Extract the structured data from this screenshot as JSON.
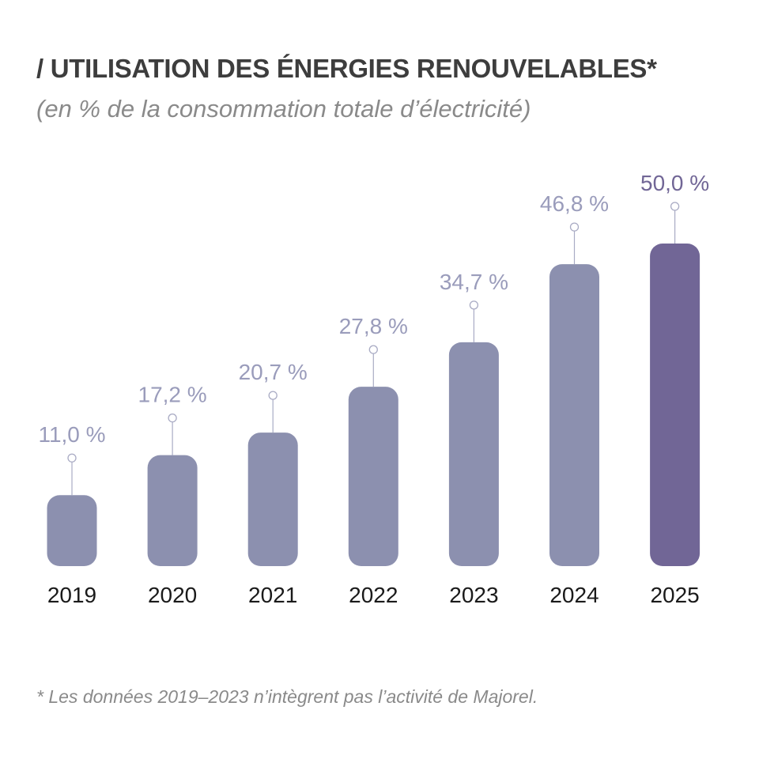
{
  "title": "/ UTILISATION DES ÉNERGIES RENOUVELABLES*",
  "subtitle": "(en % de la consommation totale d’électricité)",
  "footnote": "* Les données 2019–2023 n’intègrent pas l’activité de Majorel.",
  "colors": {
    "bar": "#8c90af",
    "bar_highlight": "#716696",
    "label": "#9a9cbb",
    "label_highlight": "#716696",
    "connector": "#a9abc4"
  },
  "chart_data": {
    "type": "bar",
    "title": "/ UTILISATION DES ÉNERGIES RENOUVELABLES*",
    "subtitle": "(en % de la consommation totale d’électricité)",
    "categories": [
      "2019",
      "2020",
      "2021",
      "2022",
      "2023",
      "2024",
      "2025"
    ],
    "values": [
      11.0,
      17.2,
      20.7,
      27.8,
      34.7,
      46.8,
      50.0
    ],
    "data_labels": [
      "11,0 %",
      "17,2 %",
      "20,7 %",
      "27,8 %",
      "34,7 %",
      "46,8 %",
      "50,0 %"
    ],
    "highlight_index": 6,
    "xlabel": "",
    "ylabel": "",
    "ylim": [
      0,
      50
    ],
    "grid": false,
    "legend": "none"
  }
}
